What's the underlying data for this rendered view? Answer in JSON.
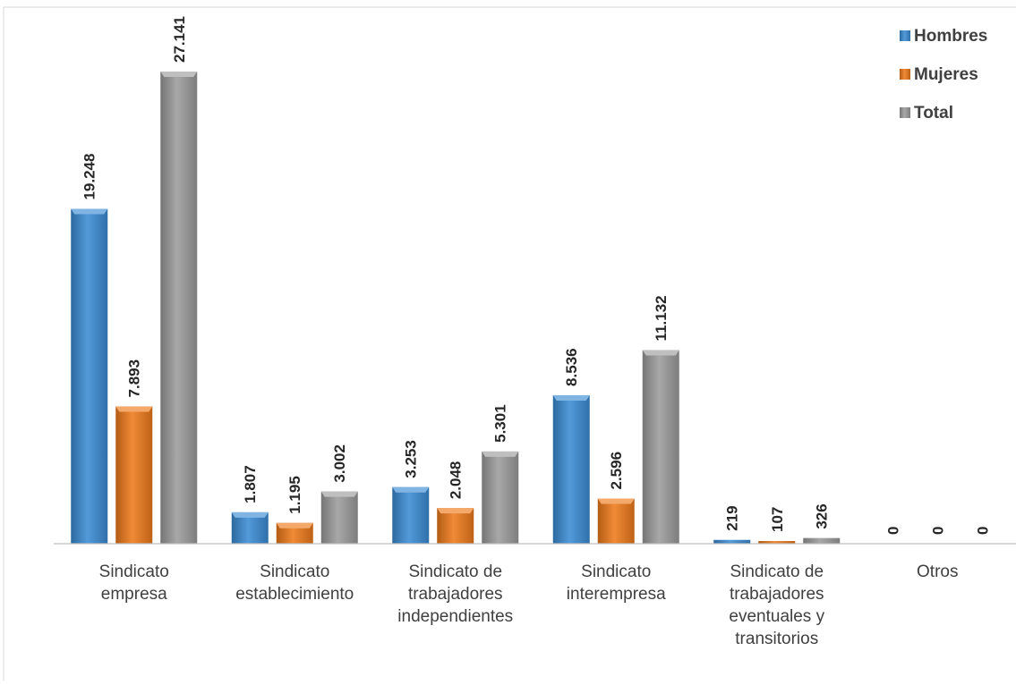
{
  "chart_data": {
    "type": "bar",
    "title": "",
    "xlabel": "",
    "ylabel": "",
    "ylim": [
      0,
      27141
    ],
    "grid": false,
    "legend_position": "top-right",
    "categories": [
      [
        "Sindicato",
        "empresa"
      ],
      [
        "Sindicato",
        "establecimiento"
      ],
      [
        "Sindicato de",
        "trabajadores",
        "independientes"
      ],
      [
        "Sindicato",
        "interempresa"
      ],
      [
        "Sindicato de",
        "trabajadores",
        "eventuales y",
        "transitorios"
      ],
      [
        "Otros"
      ]
    ],
    "series": [
      {
        "name": "Hombres",
        "color": "#3B8CD4",
        "values": [
          19248,
          1807,
          3253,
          8536,
          219,
          0
        ],
        "labels": [
          "19.248",
          "1.807",
          "3.253",
          "8.536",
          "219",
          "0"
        ]
      },
      {
        "name": "Mujeres",
        "color": "#EE7A1B",
        "values": [
          7893,
          1195,
          2048,
          2596,
          107,
          0
        ],
        "labels": [
          "7.893",
          "1.195",
          "2.048",
          "2.596",
          "107",
          "0"
        ]
      },
      {
        "name": "Total",
        "color": "#9C9C9C",
        "values": [
          27141,
          3002,
          5301,
          11132,
          326,
          0
        ],
        "labels": [
          "27.141",
          "3.002",
          "5.301",
          "11.132",
          "326",
          "0"
        ]
      }
    ]
  }
}
